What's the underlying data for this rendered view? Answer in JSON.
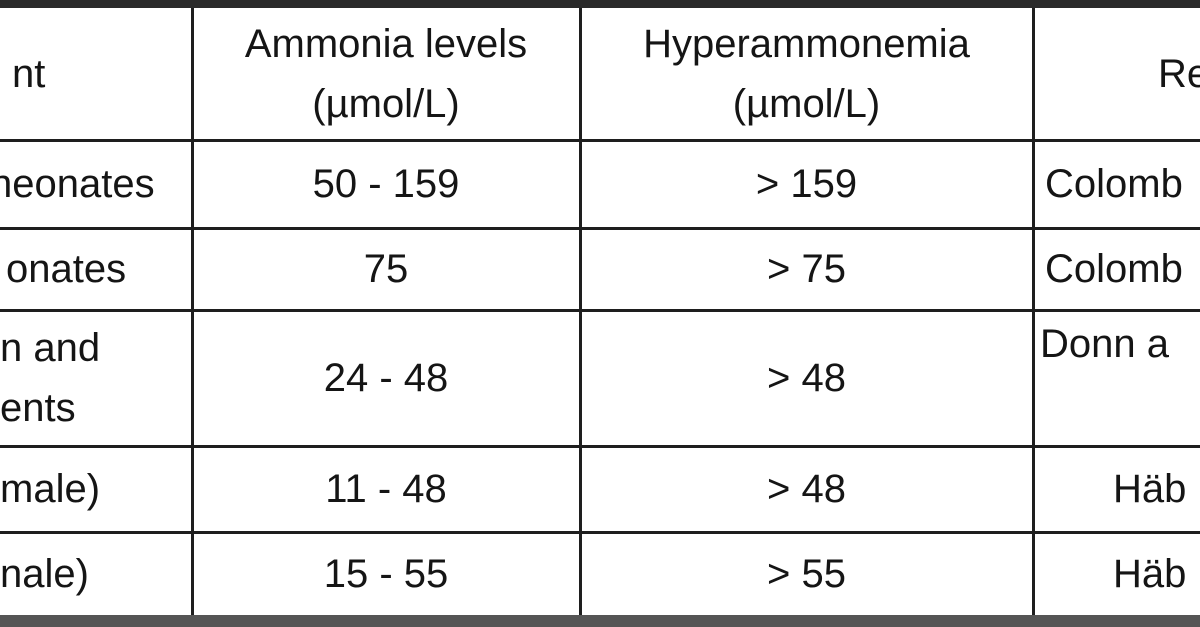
{
  "table": {
    "header": [
      [
        "nt"
      ],
      [
        "Ammonia levels",
        "(µmol/L)"
      ],
      [
        "Hyperammonemia",
        "(µmol/L)"
      ],
      [
        "Re"
      ]
    ],
    "rows": [
      [
        [
          "neonates"
        ],
        [
          "50 - 159"
        ],
        [
          "> 159"
        ],
        [
          "Colomb"
        ]
      ],
      [
        [
          "onates"
        ],
        [
          "75"
        ],
        [
          "> 75"
        ],
        [
          "Colomb"
        ]
      ],
      [
        [
          "n and",
          "ents"
        ],
        [
          "24 - 48"
        ],
        [
          "> 48"
        ],
        [
          "Donn a"
        ]
      ],
      [
        [
          "male)"
        ],
        [
          "11 - 48"
        ],
        [
          "> 48"
        ],
        [
          "Häb"
        ]
      ],
      [
        [
          "nale)"
        ],
        [
          "15 - 55"
        ],
        [
          "> 55"
        ],
        [
          "Häb"
        ]
      ]
    ]
  }
}
